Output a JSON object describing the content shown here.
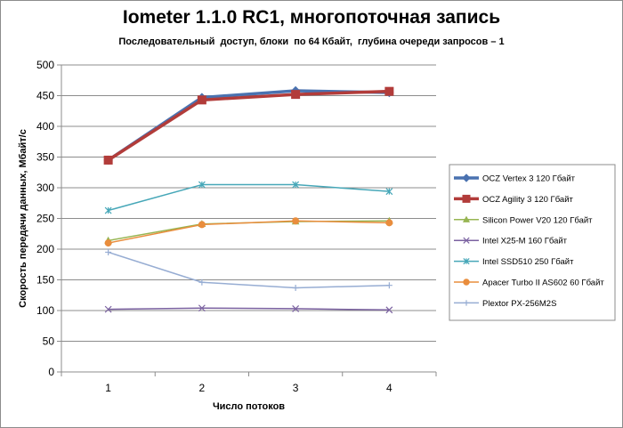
{
  "chart_data": {
    "type": "line",
    "title": "Iometer 1.1.0 RC1, многопоточная запись",
    "subtitle": "Последовательный  доступ, блоки  по 64 Кбайт,  глубина очереди запросов – 1",
    "xlabel": "Число  потоков",
    "ylabel": "Скорость  передачи данных, Мбайт/с",
    "x": [
      1,
      2,
      3,
      4
    ],
    "x_tick_labels": [
      "1",
      "2",
      "3",
      "4"
    ],
    "ylim": [
      0,
      500
    ],
    "y_ticks": [
      0,
      50,
      100,
      150,
      200,
      250,
      300,
      350,
      400,
      450,
      500
    ],
    "grid": "horizontal",
    "legend_position": "right",
    "series": [
      {
        "name": "OCZ Vertex 3 120 Гбайт",
        "values": [
          345,
          447,
          458,
          455
        ],
        "color": "#4a72b0",
        "marker": "diamond",
        "bold": true
      },
      {
        "name": "OCZ Agility 3 120 Гбайт",
        "values": [
          345,
          443,
          452,
          457
        ],
        "color": "#b23c3a",
        "marker": "square",
        "bold": true
      },
      {
        "name": "Silicon Power V20 120 Гбайт",
        "values": [
          214,
          241,
          245,
          246
        ],
        "color": "#97b552",
        "marker": "triangle",
        "bold": false
      },
      {
        "name": "Intel X25-M 160 Гбайт",
        "values": [
          102,
          104,
          103,
          101
        ],
        "color": "#7b62a1",
        "marker": "x",
        "bold": false
      },
      {
        "name": "Intel SSD510 250 Гбайт",
        "values": [
          263,
          305,
          305,
          294
        ],
        "color": "#46a7b8",
        "marker": "asterisk",
        "bold": false
      },
      {
        "name": "Apacer Turbo II AS602 60 Гбайт",
        "values": [
          210,
          240,
          246,
          243
        ],
        "color": "#e98d3d",
        "marker": "circle",
        "bold": false
      },
      {
        "name": "Plextor PX-256M2S",
        "values": [
          195,
          146,
          137,
          141
        ],
        "color": "#97add3",
        "marker": "plus",
        "bold": false
      }
    ]
  }
}
